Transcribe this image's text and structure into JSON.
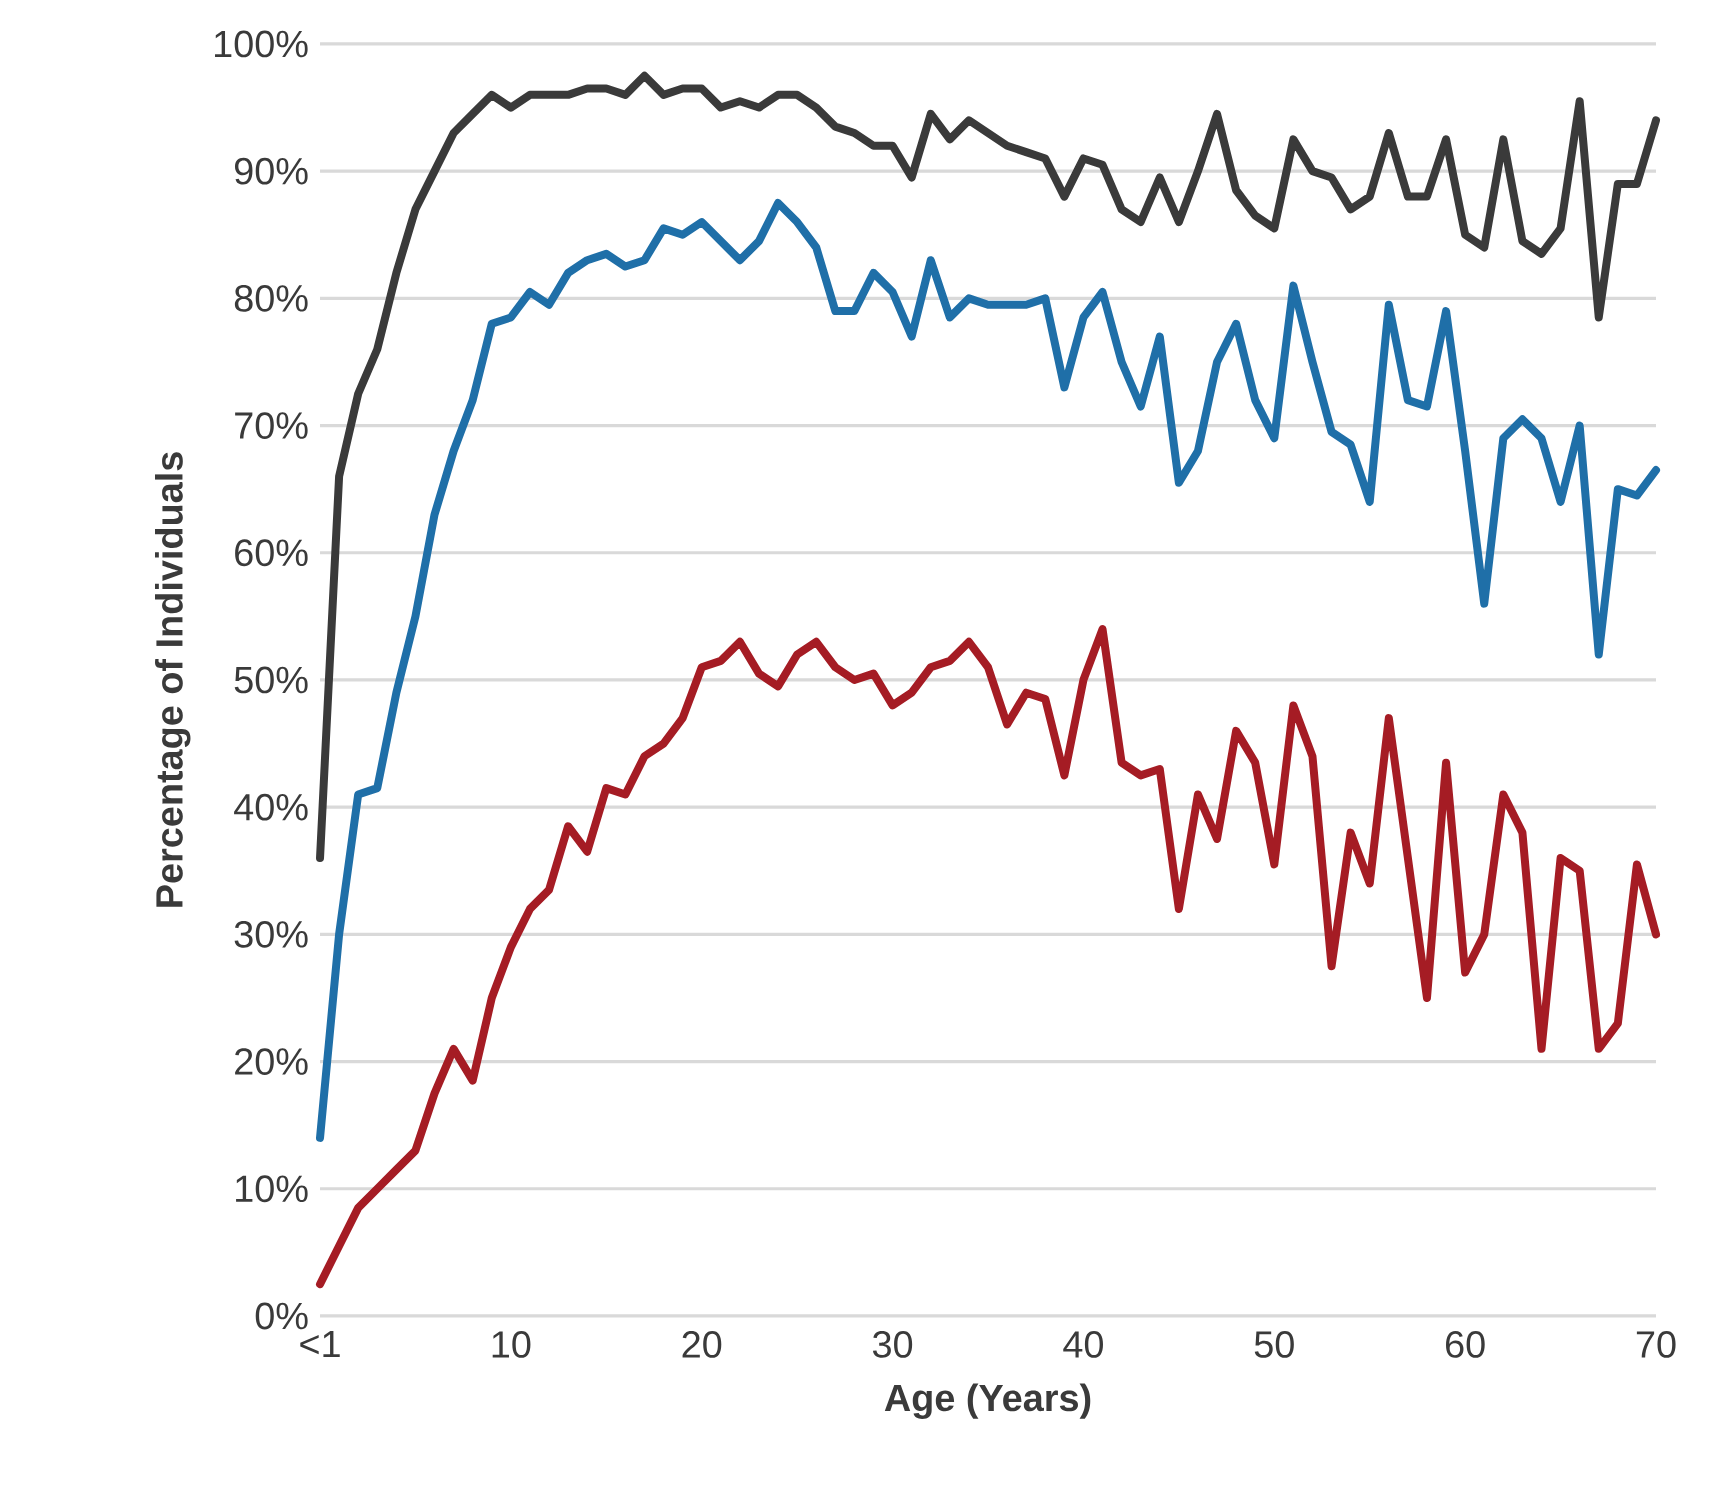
{
  "chart_data": {
    "type": "line",
    "xlabel": "Age (Years)",
    "ylabel": "Percentage of Individuals",
    "x": [
      0,
      1,
      2,
      3,
      4,
      5,
      6,
      7,
      8,
      9,
      10,
      11,
      12,
      13,
      14,
      15,
      16,
      17,
      18,
      19,
      20,
      21,
      22,
      23,
      24,
      25,
      26,
      27,
      28,
      29,
      30,
      31,
      32,
      33,
      34,
      35,
      36,
      37,
      38,
      39,
      40,
      41,
      42,
      43,
      44,
      45,
      46,
      47,
      48,
      49,
      50,
      51,
      52,
      53,
      54,
      55,
      56,
      57,
      58,
      59,
      60,
      61,
      62,
      63,
      64,
      65,
      66,
      67,
      68,
      69,
      70
    ],
    "series": [
      {
        "color": "#3a3a3a",
        "values": [
          36,
          66,
          72.5,
          76,
          82,
          87,
          90,
          93,
          94.5,
          96,
          95,
          96,
          96,
          96,
          96.5,
          96.5,
          96,
          97.5,
          96,
          96.5,
          96.5,
          95,
          95.5,
          95,
          96,
          96,
          95,
          93.5,
          93,
          92,
          92,
          89.5,
          94.5,
          92.5,
          94,
          93,
          92,
          91.5,
          91,
          88,
          91,
          90.5,
          87,
          86,
          89.5,
          86,
          90,
          94.5,
          88.5,
          86.5,
          85.5,
          92.5,
          90,
          89.5,
          87,
          88,
          93,
          88,
          88,
          92.5,
          85,
          84,
          92.5,
          84.5,
          83.5,
          85.5,
          95.5,
          78.5,
          89,
          89,
          94
        ]
      },
      {
        "color": "#1f6fa8",
        "values": [
          14,
          30,
          41,
          41.5,
          49,
          55,
          63,
          68,
          72,
          78,
          78.5,
          80.5,
          79.5,
          82,
          83,
          83.5,
          82.5,
          83,
          85.5,
          85,
          86,
          84.5,
          83,
          84.5,
          87.5,
          86,
          84,
          79,
          79,
          82,
          80.5,
          77,
          83,
          78.5,
          80,
          79.5,
          79.5,
          79.5,
          80,
          73,
          78.5,
          80.5,
          75,
          71.5,
          77,
          65.5,
          68,
          75,
          78,
          72,
          69,
          81,
          75,
          69.5,
          68.5,
          64,
          79.5,
          72,
          71.5,
          79,
          68,
          56,
          69,
          70.5,
          69,
          64,
          70,
          52,
          65,
          64.5,
          66.5
        ]
      },
      {
        "color": "#a51c24",
        "values": [
          2.5,
          5.5,
          8.5,
          10,
          11.5,
          13,
          17.5,
          21,
          18.5,
          25,
          29,
          32,
          33.5,
          38.5,
          36.5,
          41.5,
          41,
          44,
          45,
          47,
          51,
          51.5,
          53,
          50.5,
          49.5,
          52,
          53,
          51,
          50,
          50.5,
          48,
          49,
          51,
          51.5,
          53,
          51,
          46.5,
          49,
          48.5,
          42.5,
          50,
          54,
          43.5,
          42.5,
          43,
          32,
          41,
          37.5,
          46,
          43.5,
          35.5,
          48,
          44,
          27.5,
          38,
          34,
          47,
          36,
          25,
          43.5,
          27,
          30,
          41,
          38,
          21,
          36,
          35,
          21,
          23,
          35.5,
          30
        ]
      }
    ],
    "xlim": [
      0,
      70
    ],
    "ylim": [
      0,
      100
    ],
    "xticks": [
      {
        "value": 0,
        "label": "<1"
      },
      10,
      20,
      30,
      40,
      50,
      60,
      70
    ],
    "yticks": [
      {
        "value": 0,
        "label": "0%"
      },
      {
        "value": 10,
        "label": "10%"
      },
      {
        "value": 20,
        "label": "20%"
      },
      {
        "value": 30,
        "label": "30%"
      },
      {
        "value": 40,
        "label": "40%"
      },
      {
        "value": 50,
        "label": "50%"
      },
      {
        "value": 60,
        "label": "60%"
      },
      {
        "value": 70,
        "label": "70%"
      },
      {
        "value": 80,
        "label": "80%"
      },
      {
        "value": 90,
        "label": "90%"
      },
      {
        "value": 100,
        "label": "100%"
      }
    ],
    "grid": "y",
    "line_style": "solid"
  }
}
